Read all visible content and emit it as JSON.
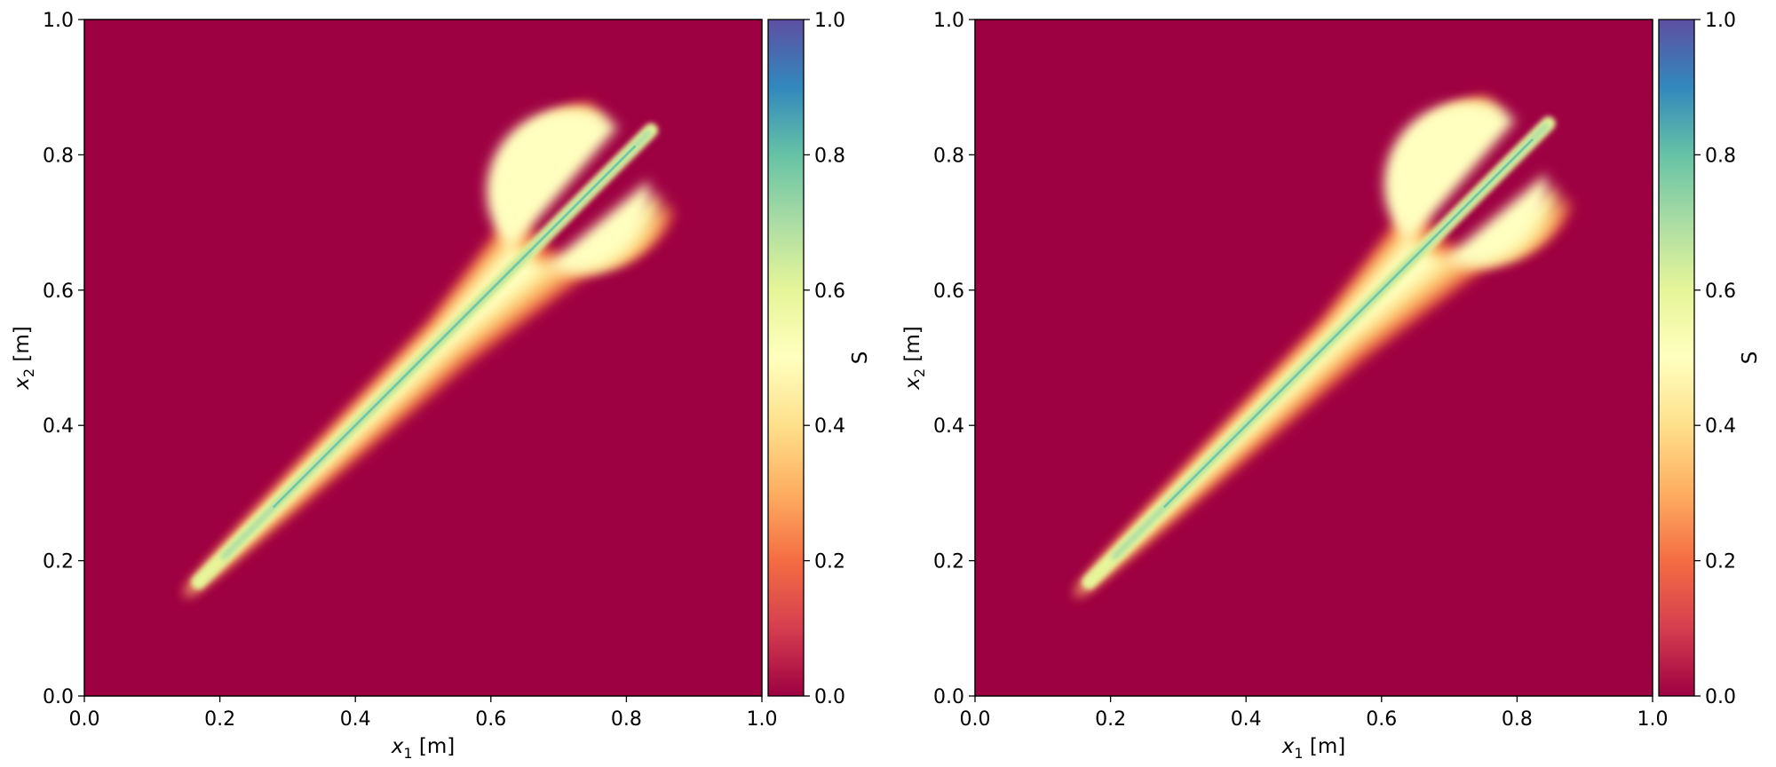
{
  "chart_data": [
    {
      "type": "heatmap",
      "xlabel": {
        "var": "x",
        "sub": "1",
        "unit": " [m]"
      },
      "ylabel": {
        "var": "x",
        "sub": "2",
        "unit": " [m]"
      },
      "xlim": [
        0.0,
        1.0
      ],
      "ylim": [
        0.0,
        1.0
      ],
      "xticks": [
        "0.0",
        "0.2",
        "0.4",
        "0.6",
        "0.8",
        "1.0"
      ],
      "yticks": [
        "0.0",
        "0.2",
        "0.4",
        "0.6",
        "0.8",
        "1.0"
      ],
      "colorbar": {
        "label": "S",
        "range": [
          0.0,
          1.0
        ],
        "ticks": [
          "0.0",
          "0.2",
          "0.4",
          "0.6",
          "0.8",
          "1.0"
        ],
        "colormap": "Spectral"
      },
      "grid": false,
      "background_value": 0.0,
      "plume": {
        "from": [
          0.15,
          0.15
        ],
        "to": [
          0.84,
          0.84
        ],
        "end_lobe_radius": 0.12,
        "peak_S_centerline": 0.85
      }
    },
    {
      "type": "heatmap",
      "xlabel": {
        "var": "x",
        "sub": "1",
        "unit": " [m]"
      },
      "ylabel": {
        "var": "x",
        "sub": "2",
        "unit": " [m]"
      },
      "xlim": [
        0.0,
        1.0
      ],
      "ylim": [
        0.0,
        1.0
      ],
      "xticks": [
        "0.0",
        "0.2",
        "0.4",
        "0.6",
        "0.8",
        "1.0"
      ],
      "yticks": [
        "0.0",
        "0.2",
        "0.4",
        "0.6",
        "0.8",
        "1.0"
      ],
      "colorbar": {
        "label": "S",
        "range": [
          0.0,
          1.0
        ],
        "ticks": [
          "0.0",
          "0.2",
          "0.4",
          "0.6",
          "0.8",
          "1.0"
        ],
        "colormap": "Spectral"
      },
      "grid": false,
      "background_value": 0.0,
      "plume": {
        "from": [
          0.15,
          0.15
        ],
        "to": [
          0.85,
          0.85
        ],
        "end_lobe_radius": 0.12,
        "peak_S_centerline": 0.85
      }
    }
  ],
  "colors": {
    "background": "#9e0142",
    "spectral_stops": [
      "#9e0142",
      "#d53e4f",
      "#f46d43",
      "#fdae61",
      "#fee08b",
      "#ffffbf",
      "#e6f598",
      "#abdda4",
      "#66c2a5",
      "#3288bd",
      "#5e4fa2"
    ]
  }
}
